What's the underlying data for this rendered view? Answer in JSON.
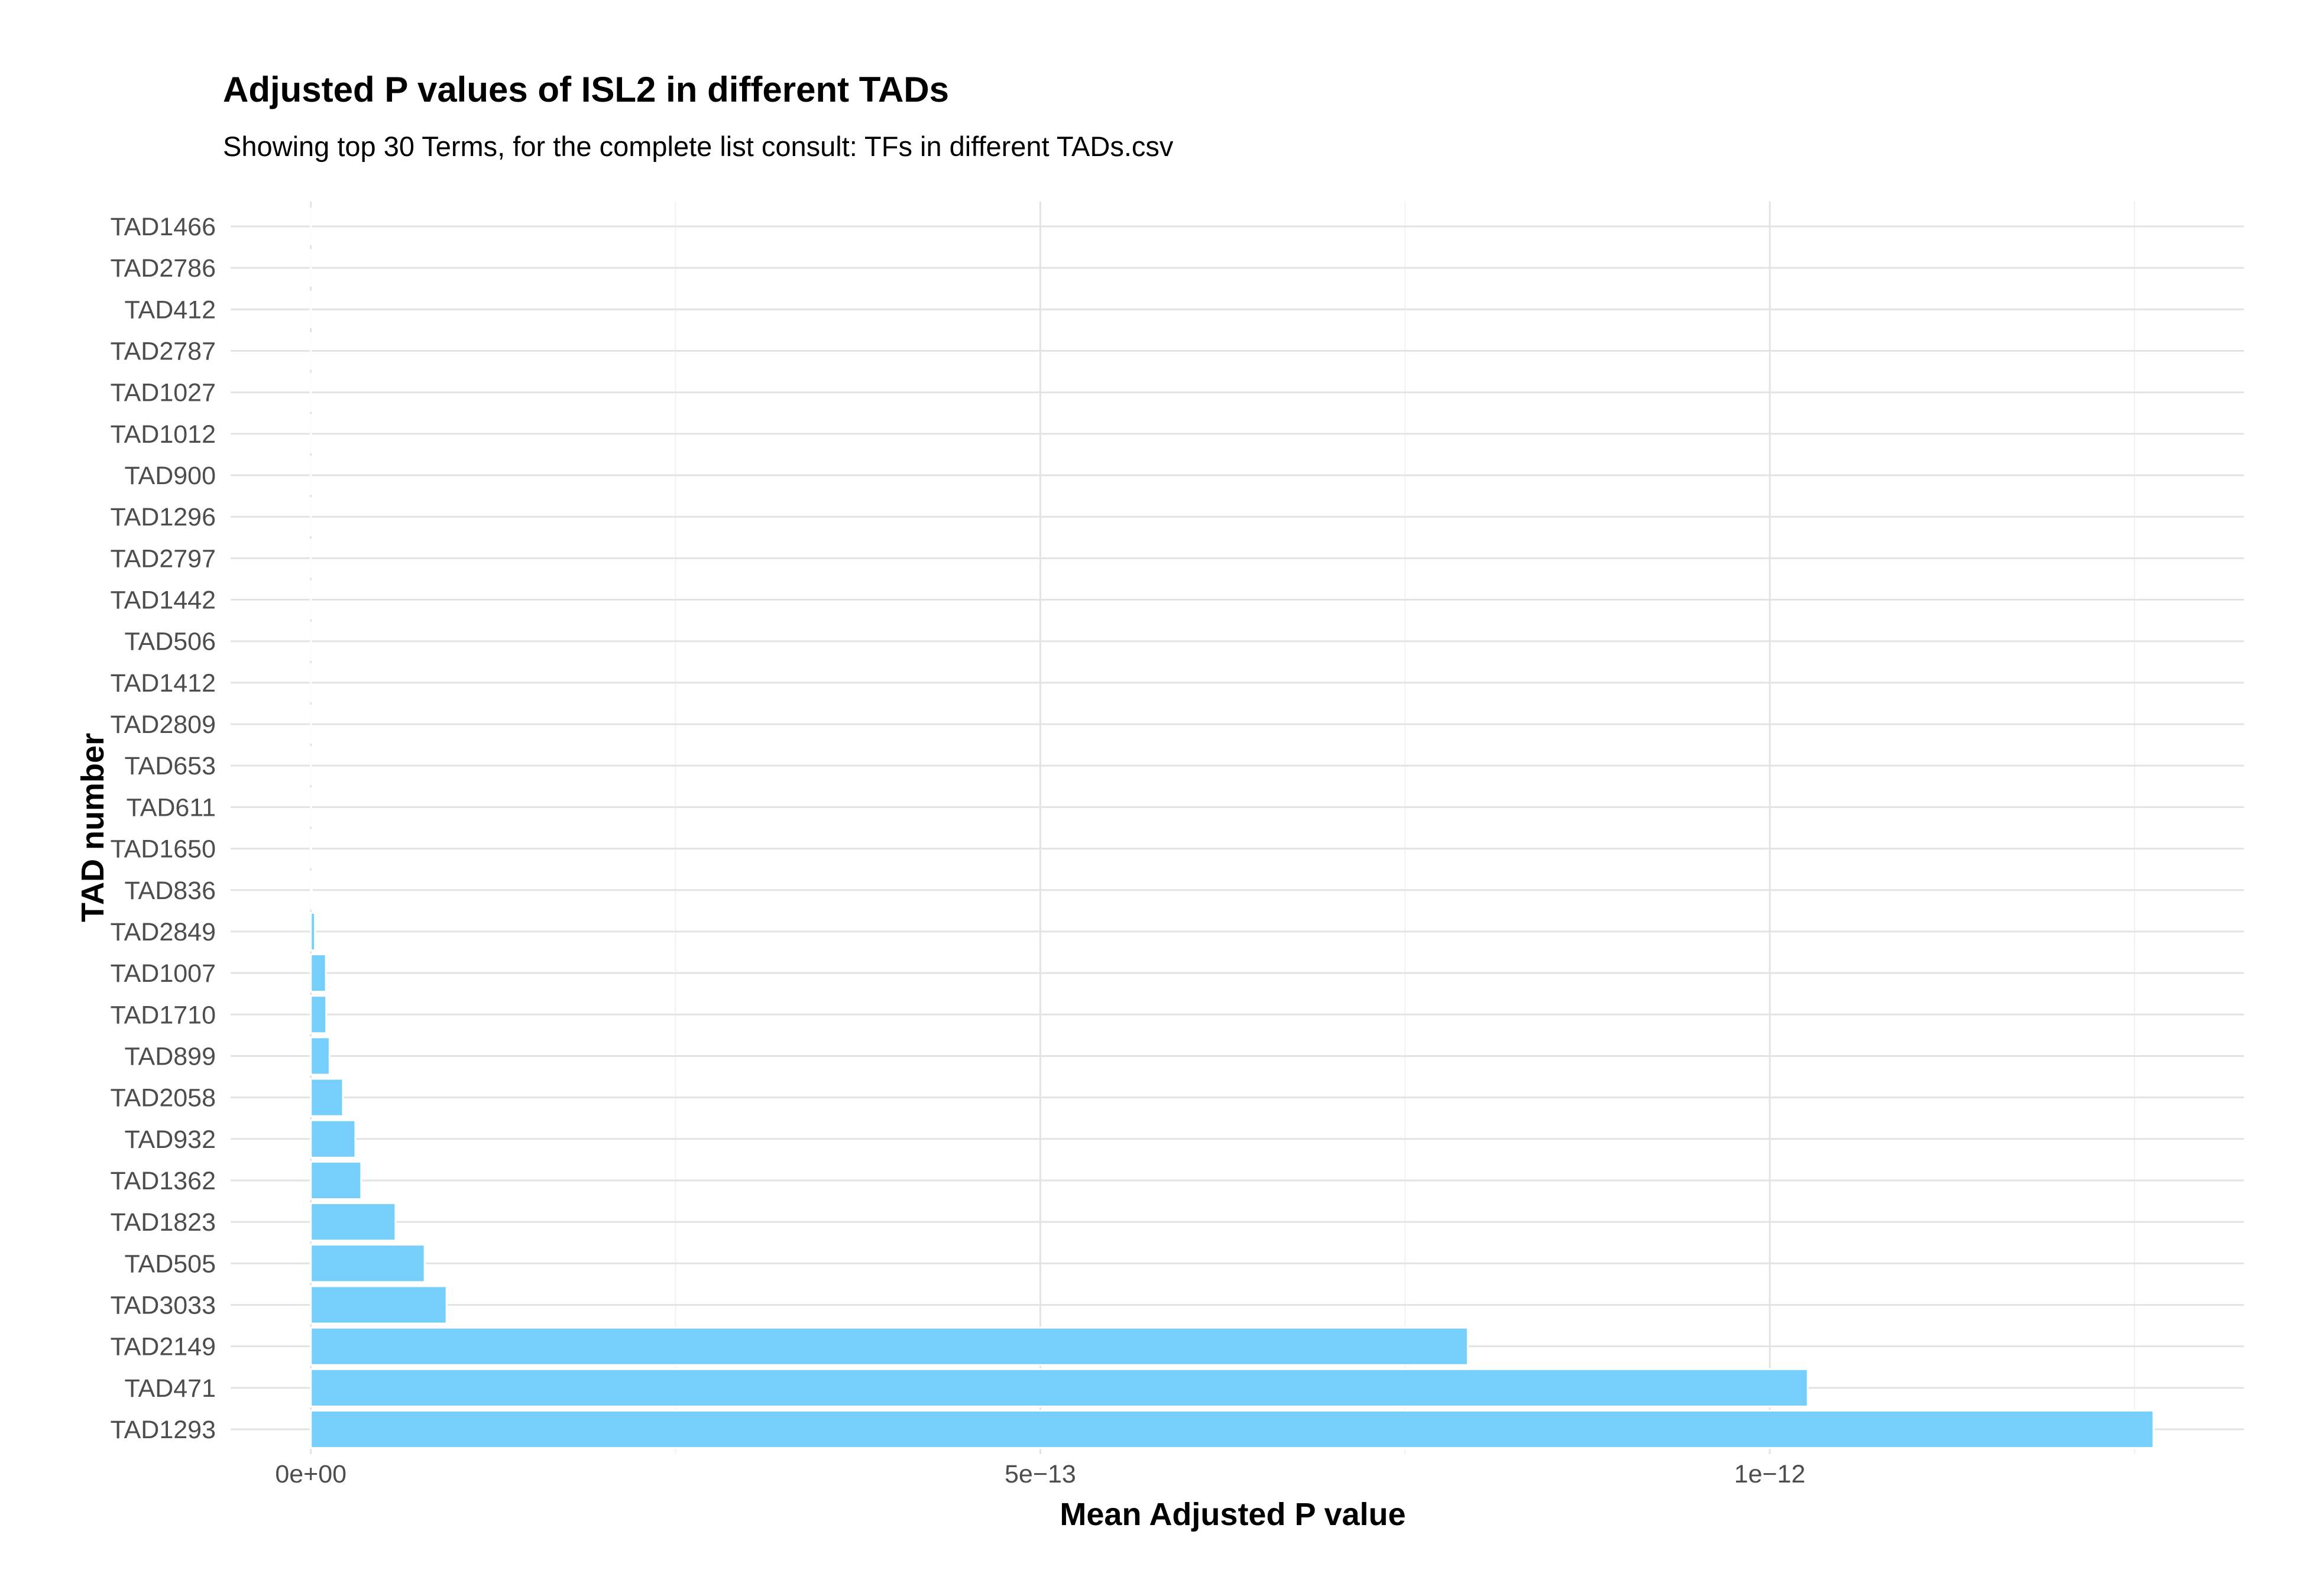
{
  "chart_data": {
    "type": "bar",
    "orientation": "horizontal",
    "title": "Adjusted P values of ISL2 in different TADs",
    "subtitle": "Showing top 30 Terms, for the complete list consult: TFs in different TADs.csv",
    "xlabel": "Mean Adjusted P value",
    "ylabel": "TAD number",
    "grid": true,
    "legend": "none",
    "xlim": [
      -5.5e-14,
      1.325e-12
    ],
    "x_ticks": [
      {
        "value": 0,
        "label": "0e+00"
      },
      {
        "value": 5e-13,
        "label": "5e−13"
      },
      {
        "value": 1e-12,
        "label": "1e−12"
      }
    ],
    "categories": [
      "TAD1466",
      "TAD2786",
      "TAD412",
      "TAD2787",
      "TAD1027",
      "TAD1012",
      "TAD900",
      "TAD1296",
      "TAD2797",
      "TAD1442",
      "TAD506",
      "TAD1412",
      "TAD2809",
      "TAD653",
      "TAD611",
      "TAD1650",
      "TAD836",
      "TAD2849",
      "TAD1007",
      "TAD1710",
      "TAD899",
      "TAD2058",
      "TAD932",
      "TAD1362",
      "TAD1823",
      "TAD505",
      "TAD3033",
      "TAD2149",
      "TAD471",
      "TAD1293"
    ],
    "values": [
      1e-20,
      1e-20,
      1e-20,
      1e-20,
      2e-20,
      3e-20,
      5e-20,
      1e-19,
      2e-19,
      5e-19,
      1e-18,
      2e-18,
      5e-18,
      1e-17,
      5e-17,
      2e-16,
      6e-16,
      2.8e-15,
      1.03e-14,
      1.05e-14,
      1.28e-14,
      2.2e-14,
      3.05e-14,
      3.45e-14,
      5.8e-14,
      7.8e-14,
      9.3e-14,
      7.93e-13,
      1.026e-12,
      1.263e-12
    ],
    "bar_color": "#76CFFB"
  }
}
